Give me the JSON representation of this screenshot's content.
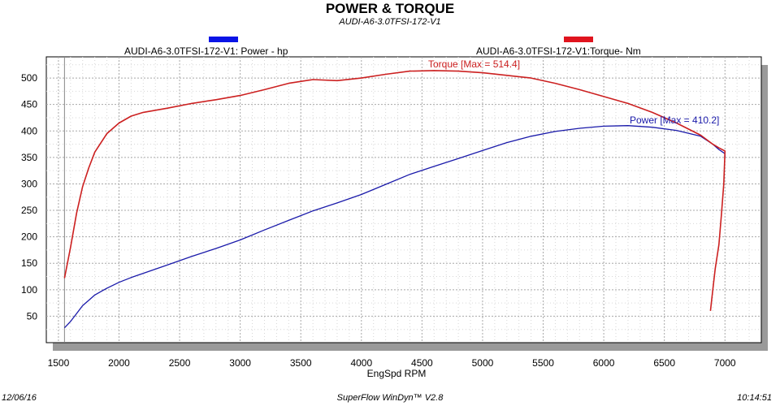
{
  "chart_data": {
    "type": "line",
    "title": "POWER & TORQUE",
    "subtitle": "AUDI-A6-3.0TFSI-172-V1",
    "xlabel": "EngSpd  RPM",
    "ylabel": "",
    "xlim": [
      1400,
      7300
    ],
    "ylim": [
      0,
      540
    ],
    "x_ticks": [
      1500,
      2000,
      2500,
      3000,
      3500,
      4000,
      4500,
      5000,
      5500,
      6000,
      6500,
      7000
    ],
    "y_ticks": [
      50,
      100,
      150,
      200,
      250,
      300,
      350,
      400,
      450,
      500
    ],
    "grid": true,
    "legend_position": "top",
    "series": [
      {
        "name": "AUDI-A6-3.0TFSI-172-V1: Power -  hp",
        "color": "#1a1aaa",
        "legend_color": "#0a14e6",
        "annotation": "Power  [Max = 410.2]",
        "x": [
          1550,
          1600,
          1650,
          1700,
          1750,
          1800,
          1900,
          2000,
          2100,
          2200,
          2400,
          2600,
          2800,
          3000,
          3200,
          3400,
          3600,
          3800,
          4000,
          4200,
          4400,
          4600,
          4800,
          5000,
          5200,
          5400,
          5600,
          5800,
          6000,
          6200,
          6400,
          6600,
          6800,
          6900,
          6950,
          7000,
          7000
        ],
        "y": [
          28,
          40,
          55,
          70,
          80,
          90,
          103,
          114,
          123,
          131,
          147,
          163,
          178,
          194,
          213,
          231,
          249,
          264,
          280,
          299,
          318,
          333,
          348,
          363,
          378,
          390,
          399,
          405,
          409,
          410,
          407,
          401,
          390,
          375,
          365,
          357,
          350
        ]
      },
      {
        "name": "AUDI-A6-3.0TFSI-172-V1:Torque-  Nm",
        "color": "#cc2020",
        "legend_color": "#e0141e",
        "annotation": "Torque [Max = 514.4]",
        "x": [
          1550,
          1600,
          1650,
          1700,
          1750,
          1800,
          1900,
          2000,
          2100,
          2200,
          2400,
          2600,
          2800,
          3000,
          3200,
          3400,
          3600,
          3800,
          4000,
          4200,
          4400,
          4600,
          4800,
          5000,
          5200,
          5400,
          5600,
          5800,
          6000,
          6200,
          6400,
          6600,
          6800,
          6900,
          6950,
          7000,
          6990,
          6970,
          6950,
          6920,
          6900,
          6880
        ],
        "y": [
          122,
          180,
          245,
          295,
          330,
          360,
          395,
          415,
          428,
          435,
          443,
          452,
          459,
          467,
          478,
          490,
          497,
          495,
          500,
          507,
          513,
          514,
          513,
          510,
          505,
          500,
          490,
          478,
          465,
          452,
          435,
          415,
          392,
          375,
          368,
          362,
          300,
          240,
          185,
          140,
          100,
          60
        ]
      }
    ]
  },
  "footer": {
    "date": "12/06/16",
    "software": "SuperFlow WinDyn™  V2.8",
    "time": "10:14:51"
  }
}
